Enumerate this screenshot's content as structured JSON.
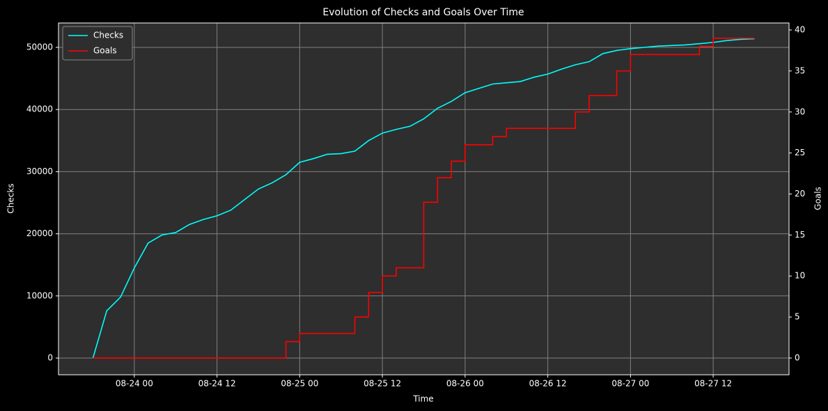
{
  "chart_data": {
    "type": "line",
    "title": "Evolution of Checks and Goals Over Time",
    "xlabel": "Time",
    "ylabel": "Checks",
    "y2label": "Goals",
    "x": [
      "08-23 18",
      "08-23 20",
      "08-23 22",
      "08-24 00",
      "08-24 02",
      "08-24 04",
      "08-24 06",
      "08-24 08",
      "08-24 10",
      "08-24 12",
      "08-24 14",
      "08-24 16",
      "08-24 18",
      "08-24 20",
      "08-24 22",
      "08-25 00",
      "08-25 02",
      "08-25 04",
      "08-25 06",
      "08-25 08",
      "08-25 10",
      "08-25 12",
      "08-25 14",
      "08-25 16",
      "08-25 18",
      "08-25 20",
      "08-25 22",
      "08-26 00",
      "08-26 02",
      "08-26 04",
      "08-26 06",
      "08-26 08",
      "08-26 10",
      "08-26 12",
      "08-26 14",
      "08-26 16",
      "08-26 18",
      "08-26 20",
      "08-26 22",
      "08-27 00",
      "08-27 02",
      "08-27 04",
      "08-27 06",
      "08-27 08",
      "08-27 10",
      "08-27 12",
      "08-27 14",
      "08-27 16",
      "08-27 18"
    ],
    "series": [
      {
        "name": "Checks",
        "color": "#00ffff",
        "axis": "y",
        "values": [
          0,
          7600,
          9800,
          14500,
          18500,
          19800,
          20200,
          21500,
          22300,
          22900,
          23800,
          25500,
          27200,
          28200,
          29500,
          31500,
          32100,
          32800,
          32900,
          33300,
          35000,
          36200,
          36800,
          37300,
          38500,
          40200,
          41300,
          42700,
          43400,
          44100,
          44300,
          44500,
          45200,
          45700,
          46500,
          47200,
          47700,
          49000,
          49500,
          49800,
          50000,
          50200,
          50300,
          50400,
          50600,
          50800,
          51100,
          51300,
          51400
        ]
      },
      {
        "name": "Goals",
        "color": "#ff0000",
        "axis": "y2",
        "drawstyle": "steps-post",
        "values": [
          0,
          0,
          0,
          0,
          0,
          0,
          0,
          0,
          0,
          0,
          0,
          0,
          0,
          0,
          2,
          3,
          3,
          3,
          3,
          5,
          8,
          10,
          11,
          11,
          19,
          22,
          24,
          26,
          26,
          27,
          28,
          28,
          28,
          28,
          28,
          30,
          32,
          32,
          35,
          37,
          37,
          37,
          37,
          37,
          38,
          39,
          39,
          39,
          39
        ]
      }
    ],
    "xlim": [
      "08-23 13",
      "08-27 23"
    ],
    "xticks": [
      "08-24 00",
      "08-24 12",
      "08-25 00",
      "08-25 12",
      "08-26 00",
      "08-26 12",
      "08-27 00",
      "08-27 12"
    ],
    "ylim": [
      -2690,
      53924
    ],
    "yticks": [
      0,
      10000,
      20000,
      30000,
      40000,
      50000
    ],
    "y2lim": [
      -2.04,
      40.85
    ],
    "y2ticks": [
      0,
      5,
      10,
      15,
      20,
      25,
      30,
      35,
      40
    ],
    "grid": true,
    "legend": "upper left"
  }
}
